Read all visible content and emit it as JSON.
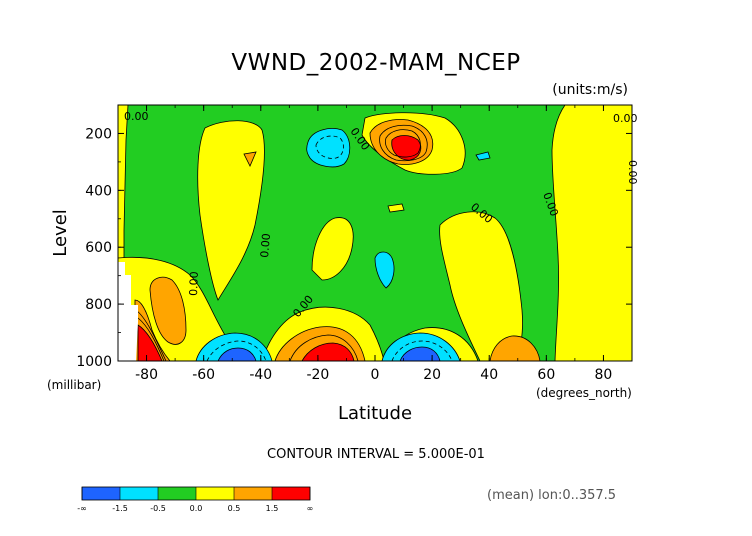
{
  "chart_data": {
    "type": "contour",
    "title": "VWND_2002-MAM_NCEP",
    "units_label": "(units:m/s)",
    "xlabel": "Latitude",
    "x_units": "(degrees_north)",
    "ylabel": "Level",
    "y_units": "(millibar)",
    "xlim": [
      -90,
      90
    ],
    "ylim": [
      1000,
      100
    ],
    "x_ticks": [
      "-80",
      "-60",
      "-40",
      "-20",
      "0",
      "20",
      "40",
      "60",
      "80"
    ],
    "x_tick_values": [
      -80,
      -60,
      -40,
      -20,
      0,
      20,
      40,
      60,
      80
    ],
    "y_ticks": [
      "200",
      "400",
      "600",
      "800",
      "1000"
    ],
    "y_tick_values": [
      200,
      400,
      600,
      800,
      1000
    ],
    "contour_interval_text": "CONTOUR INTERVAL = 5.000E-01",
    "contour_label": "0.00",
    "mean_text": "(mean) lon:0..357.5",
    "levels": [
      -1.5,
      -0.5,
      0.0,
      0.5,
      1.5
    ],
    "colorbar": {
      "labels": [
        "-∞",
        "-1.5",
        "-0.5",
        "0.0",
        "0.5",
        "1.5",
        "∞"
      ],
      "colors": [
        "#1e64ff",
        "#00e1ff",
        "#22cd22",
        "#ffff00",
        "#ffa500",
        "#ff0000"
      ]
    },
    "features": [
      {
        "kind": "max",
        "lat": 10,
        "level": 170,
        "value": 2.0
      },
      {
        "kind": "max",
        "lat": -14,
        "level": 960,
        "value": 2.5
      },
      {
        "kind": "max",
        "lat": -84,
        "level": 960,
        "value": 2.5
      },
      {
        "kind": "max",
        "lat": -77,
        "level": 820,
        "value": 1.0
      },
      {
        "kind": "max",
        "lat": 57,
        "level": 960,
        "value": 1.0
      },
      {
        "kind": "min",
        "lat": -52,
        "level": 960,
        "value": -2.0
      },
      {
        "kind": "min",
        "lat": 15,
        "level": 960,
        "value": -2.0
      },
      {
        "kind": "min",
        "lat": -15,
        "level": 160,
        "value": -1.0
      },
      {
        "kind": "min",
        "lat": 5,
        "level": 650,
        "value": -1.0
      },
      {
        "kind": "min",
        "lat": 38,
        "level": 200,
        "value": -0.6
      }
    ]
  }
}
